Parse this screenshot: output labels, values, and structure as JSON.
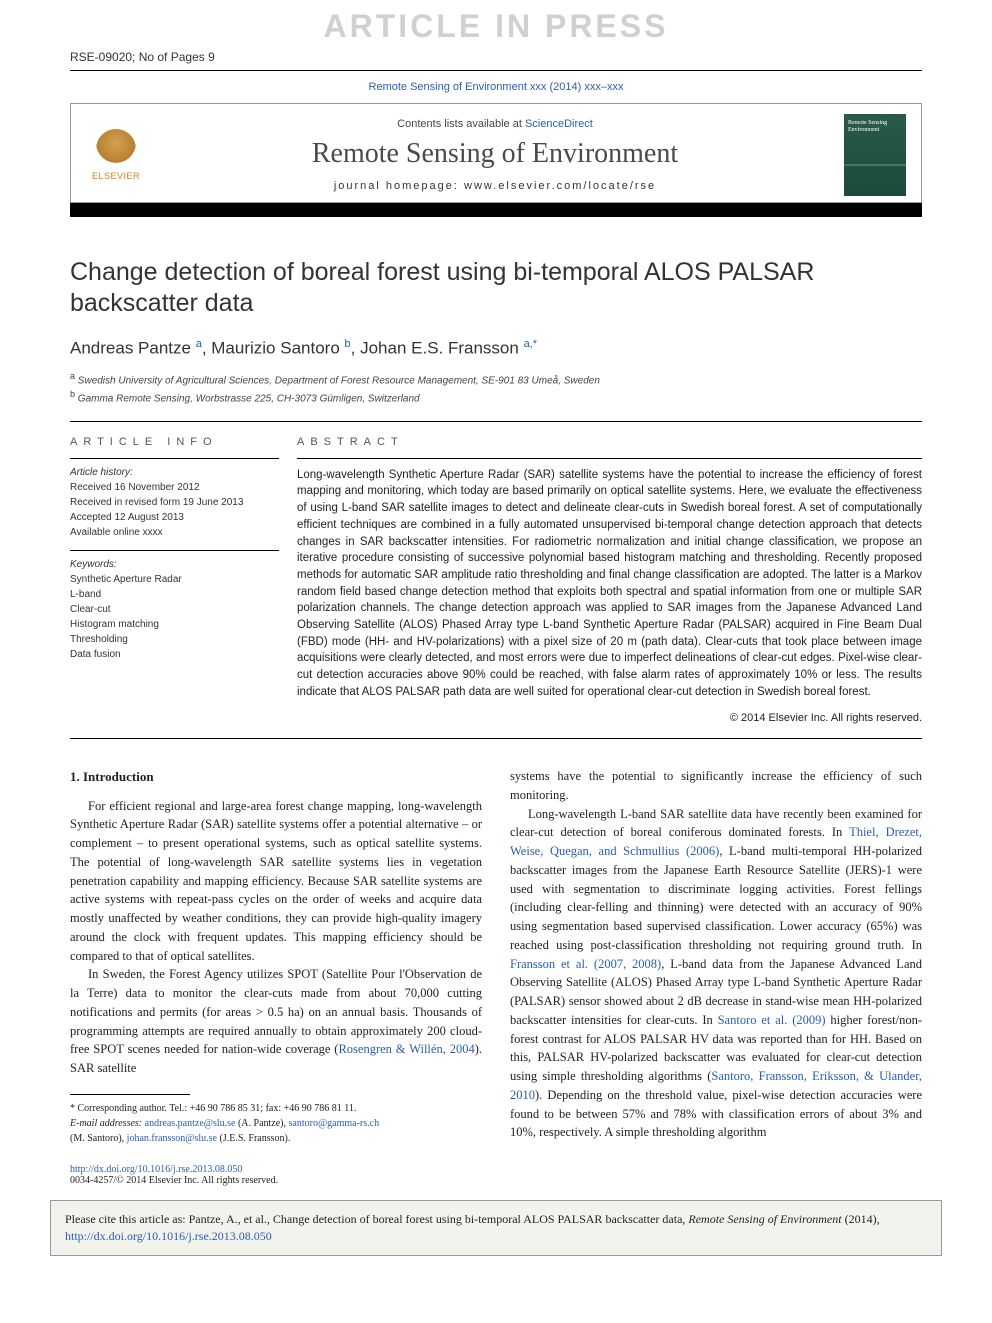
{
  "watermark": "ARTICLE IN PRESS",
  "article_id": "RSE-09020; No of Pages 9",
  "journal_ref_link": "Remote Sensing of Environment xxx (2014) xxx–xxx",
  "header": {
    "contents_prefix": "Contents lists available at ",
    "contents_link": "ScienceDirect",
    "journal_name": "Remote Sensing of Environment",
    "homepage": "journal homepage: www.elsevier.com/locate/rse",
    "elsevier_label": "ELSEVIER",
    "cover_text": "Remote Sensing Environment"
  },
  "title": "Change detection of boreal forest using bi-temporal ALOS PALSAR backscatter data",
  "authors_html": {
    "a1_name": "Andreas Pantze ",
    "a1_sup": "a",
    "a2_name": ", Maurizio Santoro ",
    "a2_sup": "b",
    "a3_name": ", Johan E.S. Fransson ",
    "a3_sup": "a,",
    "a3_star": "*"
  },
  "affiliations": {
    "a": "Swedish University of Agricultural Sciences, Department of Forest Resource Management, SE-901 83 Umeå, Sweden",
    "b": "Gamma Remote Sensing, Worbstrasse 225, CH-3073 Gümligen, Switzerland"
  },
  "info": {
    "heading": "article info",
    "history_label": "Article history:",
    "received": "Received 16 November 2012",
    "revised": "Received in revised form 19 June 2013",
    "accepted": "Accepted 12 August 2013",
    "online": "Available online xxxx",
    "keywords_label": "Keywords:",
    "keywords": [
      "Synthetic Aperture Radar",
      "L-band",
      "Clear-cut",
      "Histogram matching",
      "Thresholding",
      "Data fusion"
    ]
  },
  "abstract": {
    "heading": "abstract",
    "text": "Long-wavelength Synthetic Aperture Radar (SAR) satellite systems have the potential to increase the efficiency of forest mapping and monitoring, which today are based primarily on optical satellite systems. Here, we evaluate the effectiveness of using L-band SAR satellite images to detect and delineate clear-cuts in Swedish boreal forest. A set of computationally efficient techniques are combined in a fully automated unsupervised bi-temporal change detection approach that detects changes in SAR backscatter intensities. For radiometric normalization and initial change classification, we propose an iterative procedure consisting of successive polynomial based histogram matching and thresholding. Recently proposed methods for automatic SAR amplitude ratio thresholding and final change classification are adopted. The latter is a Markov random field based change detection method that exploits both spectral and spatial information from one or multiple SAR polarization channels. The change detection approach was applied to SAR images from the Japanese Advanced Land Observing Satellite (ALOS) Phased Array type L-band Synthetic Aperture Radar (PALSAR) acquired in Fine Beam Dual (FBD) mode (HH- and HV-polarizations) with a pixel size of 20 m (path data). Clear-cuts that took place between image acquisitions were clearly detected, and most errors were due to imperfect delineations of clear-cut edges. Pixel-wise clear-cut detection accuracies above 90% could be reached, with false alarm rates of approximately 10% or less. The results indicate that ALOS PALSAR path data are well suited for operational clear-cut detection in Swedish boreal forest.",
    "copyright": "© 2014 Elsevier Inc. All rights reserved."
  },
  "body": {
    "intro_heading": "1. Introduction",
    "left_p1": "For efficient regional and large-area forest change mapping, long-wavelength Synthetic Aperture Radar (SAR) satellite systems offer a potential alternative – or complement – to present operational systems, such as optical satellite systems. The potential of long-wavelength SAR satellite systems lies in vegetation penetration capability and mapping efficiency. Because SAR satellite systems are active systems with repeat-pass cycles on the order of weeks and acquire data mostly unaffected by weather conditions, they can provide high-quality imagery around the clock with frequent updates. This mapping efficiency should be compared to that of optical satellites.",
    "left_p2_a": "In Sweden, the Forest Agency utilizes SPOT (Satellite Pour l'Observation de la Terre) data to monitor the clear-cuts made from about 70,000 cutting notifications and permits (for areas > 0.5 ha) on an annual basis. Thousands of programming attempts are required annually to obtain approximately 200 cloud-free SPOT scenes needed for nation-wide coverage (",
    "left_p2_ref": "Rosengren & Willén, 2004",
    "left_p2_b": "). SAR satellite",
    "right_p1": "systems have the potential to significantly increase the efficiency of such monitoring.",
    "right_p2_a": "Long-wavelength L-band SAR satellite data have recently been examined for clear-cut detection of boreal coniferous dominated forests. In ",
    "right_p2_ref1": "Thiel, Drezet, Weise, Quegan, and Schmullius (2006)",
    "right_p2_b": ", L-band multi-temporal HH-polarized backscatter images from the Japanese Earth Resource Satellite (JERS)-1 were used with segmentation to discriminate logging activities. Forest fellings (including clear-felling and thinning) were detected with an accuracy of 90% using segmentation based supervised classification. Lower accuracy (65%) was reached using post-classification thresholding not requiring ground truth. In ",
    "right_p2_ref2": "Fransson et al. (2007, 2008)",
    "right_p2_c": ", L-band data from the Japanese Advanced Land Observing Satellite (ALOS) Phased Array type L-band Synthetic Aperture Radar (PALSAR) sensor showed about 2 dB decrease in stand-wise mean HH-polarized backscatter intensities for clear-cuts. In ",
    "right_p2_ref3": "Santoro et al. (2009)",
    "right_p2_d": " higher forest/non-forest contrast for ALOS PALSAR HV data was reported than for HH. Based on this, PALSAR HV-polarized backscatter was evaluated for clear-cut detection using simple thresholding algorithms (",
    "right_p2_ref4": "Santoro, Fransson, Eriksson, & Ulander, 2010",
    "right_p2_e": "). Depending on the threshold value, pixel-wise detection accuracies were found to be between 57% and 78% with classification errors of about 3% and 10%, respectively. A simple thresholding algorithm"
  },
  "footnotes": {
    "corr": "Corresponding author. Tel.: +46 90 786 85 31; fax: +46 90 786 81 11.",
    "emails_label": "E-mail addresses:",
    "e1": "andreas.pantze@slu.se",
    "e1_who": " (A. Pantze), ",
    "e2": "santoro@gamma-rs.ch",
    "e2_who": "(M. Santoro), ",
    "e3": "johan.fransson@slu.se",
    "e3_who": " (J.E.S. Fransson)."
  },
  "doi": {
    "link": "http://dx.doi.org/10.1016/j.rse.2013.08.050",
    "issn": "0034-4257/© 2014 Elsevier Inc. All rights reserved."
  },
  "citebox": {
    "prefix": "Please cite this article as: Pantze, A., et al., Change detection of boreal forest using bi-temporal ALOS PALSAR backscatter data, ",
    "journal": "Remote Sensing of Environment",
    "year": " (2014), ",
    "link": "http://dx.doi.org/10.1016/j.rse.2013.08.050"
  },
  "colors": {
    "watermark": "#d0d0d0",
    "link": "#2a5db0",
    "elsevier_orange": "#e67817",
    "journal_cover_bg": "#2a5a4a",
    "citebox_bg": "#f3f3ee",
    "text": "#222222"
  }
}
